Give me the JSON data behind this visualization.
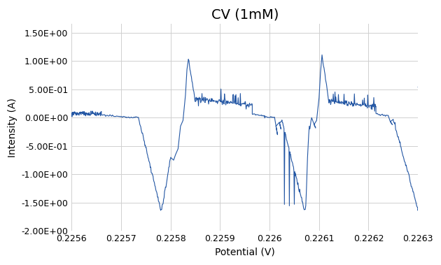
{
  "title": "CV (1mM)",
  "xlabel": "Potential (V)",
  "ylabel": "Intensity (A)",
  "xlim": [
    0.2256,
    0.2263
  ],
  "ylim": [
    -2.0,
    1.65
  ],
  "ytick_values": [
    -2.0,
    -1.5,
    -1.0,
    -0.5,
    0.0,
    0.5,
    1.0,
    1.5
  ],
  "ytick_labels": [
    "-2.00E+00",
    "-1.50E+00",
    "-1.00E+00",
    "-5.00E-01",
    "0.00E+00",
    "5.00E-01",
    "1.00E+00",
    "1.50E+00"
  ],
  "xtick_values": [
    0.2256,
    0.2257,
    0.2258,
    0.2259,
    0.226,
    0.2261,
    0.2262,
    0.2263
  ],
  "xtick_labels": [
    "0.2256",
    "0.2257",
    "0.2258",
    "0.2259",
    "0.226",
    "0.2261",
    "0.2262",
    "0.2263"
  ],
  "line_color": "#2457A4",
  "background_color": "#ffffff",
  "grid_color": "#d0d0d0",
  "title_fontsize": 14,
  "label_fontsize": 10,
  "tick_fontsize": 9,
  "line_width": 0.8
}
